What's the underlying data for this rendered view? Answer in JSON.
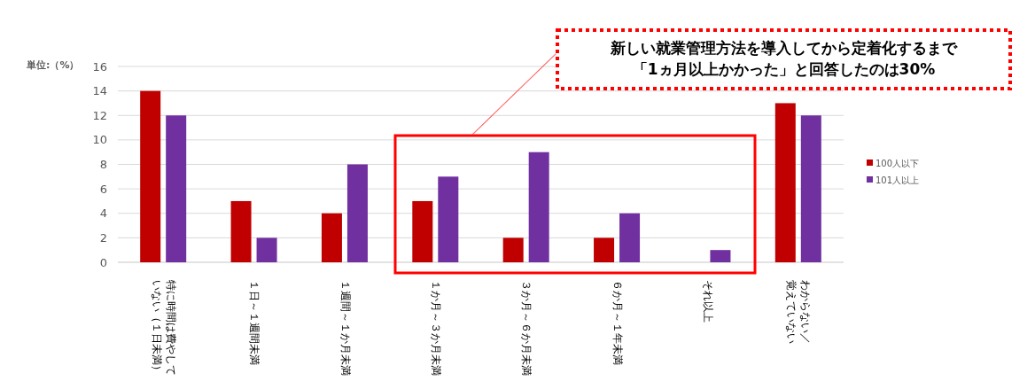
{
  "chart_data": {
    "type": "bar",
    "ylabel": "単位:（%）",
    "categories": [
      "特に時間は費やしていない（１日未満）",
      "１日～１週間未満",
      "１週間～１か月未満",
      "１か月～３か月未満",
      "３か月～６か月未満",
      "６か月～１年未満",
      "それ以上",
      "わからない／覚えていない"
    ],
    "series": [
      {
        "name": "100人以下",
        "color": "#c00000",
        "values": [
          14,
          5,
          4,
          5,
          2,
          2,
          0,
          13
        ]
      },
      {
        "name": "101人以上",
        "color": "#7030a0",
        "values": [
          12,
          2,
          8,
          7,
          9,
          4,
          1,
          12
        ]
      }
    ],
    "ylim": [
      0,
      16
    ],
    "yticks": [
      0,
      2,
      4,
      6,
      8,
      10,
      12,
      14,
      16
    ],
    "grid": "y",
    "legend": "right",
    "annotations": [
      "新しい就業管理方法を導入してから定着化するまで「1ヵ月以上かかった」と回答したのは30%"
    ]
  }
}
